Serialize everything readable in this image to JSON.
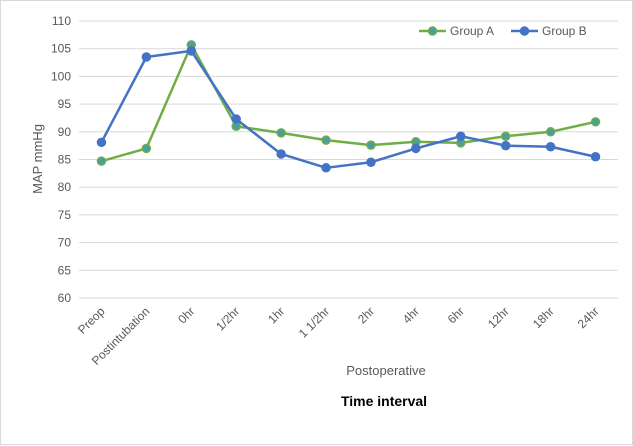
{
  "chart_data": {
    "type": "line",
    "categories": [
      "Preop",
      "Postintubation",
      "0hr",
      "1/2hr",
      "1hr",
      "1 1/2hr",
      "2hr",
      "4hr",
      "6hr",
      "12hr",
      "18hr",
      "24hr"
    ],
    "series": [
      {
        "name": "Group A",
        "color": "#70ad47",
        "marker_fill": "#4a9ea1",
        "values": [
          84.7,
          87.0,
          105.7,
          91.0,
          89.8,
          88.5,
          87.6,
          88.2,
          88.0,
          89.2,
          90.0,
          91.8
        ]
      },
      {
        "name": "Group B",
        "color": "#4472c4",
        "marker_fill": "#4472c4",
        "values": [
          88.1,
          103.5,
          104.6,
          92.3,
          86.0,
          83.5,
          84.5,
          87.0,
          89.2,
          87.5,
          87.3,
          85.5
        ]
      }
    ],
    "ylabel": "MAP mmHg",
    "xlabel_primary": "Postoperative",
    "xlabel_secondary": "Time interval",
    "ylim": [
      60,
      110
    ],
    "yticks": [
      60,
      65,
      70,
      75,
      80,
      85,
      90,
      95,
      100,
      105,
      110
    ],
    "grid": "horizontal",
    "legend_position": "top-right"
  }
}
